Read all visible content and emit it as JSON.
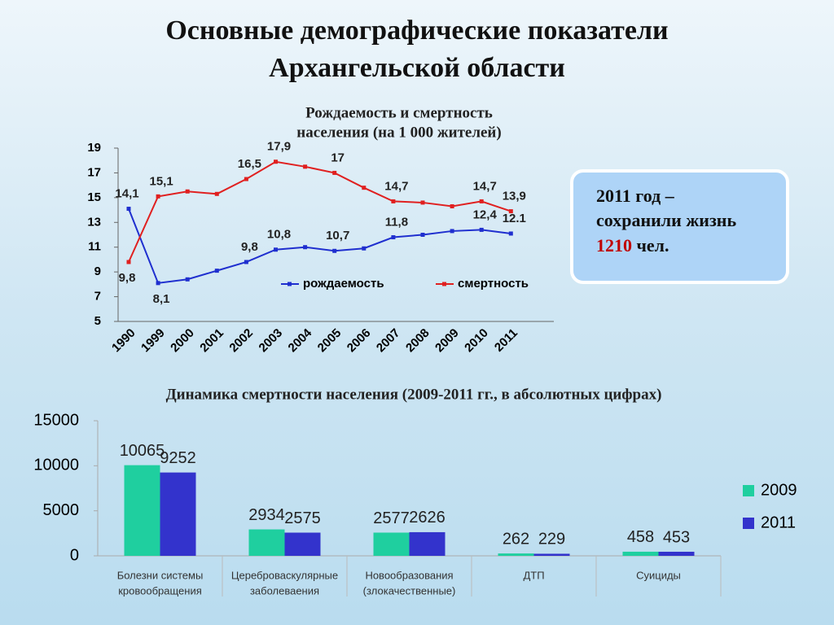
{
  "title": [
    "Основные демографические показатели",
    "Архангельской области"
  ],
  "callout": {
    "lines": [
      "2011 год –",
      "сохранили жизнь"
    ],
    "number": 1210,
    "unit": "чел."
  },
  "chart_data": [
    {
      "type": "line",
      "title": [
        "Рождаемость и смертность",
        "населения (на 1 000 жителей)"
      ],
      "categories": [
        "1990",
        "1999",
        "2000",
        "2001",
        "2002",
        "2003",
        "2004",
        "2005",
        "2006",
        "2007",
        "2008",
        "2009",
        "2010",
        "2011"
      ],
      "series": [
        {
          "name": "рождаемость",
          "color": "#1f2fcf",
          "values": [
            14.1,
            8.1,
            8.4,
            9.1,
            9.8,
            10.8,
            11.0,
            10.7,
            10.9,
            11.8,
            12.0,
            12.3,
            12.4,
            12.1
          ],
          "value_labels": [
            "14,1",
            "8,1",
            null,
            null,
            "9,8",
            "10,8",
            null,
            "10,7",
            null,
            "11,8",
            null,
            null,
            "12,4",
            "12.1"
          ]
        },
        {
          "name": "смертность",
          "color": "#e02020",
          "values": [
            9.8,
            15.1,
            15.5,
            15.3,
            16.5,
            17.9,
            17.5,
            17,
            15.8,
            14.7,
            14.6,
            14.3,
            14.7,
            13.9
          ],
          "value_labels": [
            "9,8",
            "15,1",
            null,
            null,
            "16,5",
            "17,9",
            null,
            "17",
            null,
            "14,7",
            null,
            null,
            "14,7",
            "13,9"
          ]
        }
      ],
      "ylim": [
        5,
        19
      ],
      "yticks": [
        5,
        7,
        9,
        11,
        13,
        15,
        17,
        19
      ],
      "legend": "lower-right"
    },
    {
      "type": "bar",
      "title": "Динамика смертности населения (2009-2011 гг., в абсолютных цифрах)",
      "categories": [
        [
          "Болезни системы",
          "кровообращения"
        ],
        [
          "Цереброваскулярные",
          "заболеваения"
        ],
        [
          "Новообразования",
          "(злокачественные)"
        ],
        [
          "ДТП"
        ],
        [
          "Суициды"
        ]
      ],
      "series": [
        {
          "name": "2009",
          "color": "#1fcf9f",
          "values": [
            10065,
            2934,
            2577,
            262,
            458
          ]
        },
        {
          "name": "2011",
          "color": "#3333cc",
          "values": [
            9252,
            2575,
            2626,
            229,
            453
          ]
        }
      ],
      "ylim": [
        0,
        15000
      ],
      "yticks": [
        0,
        5000,
        10000,
        15000
      ],
      "legend": "right"
    }
  ]
}
